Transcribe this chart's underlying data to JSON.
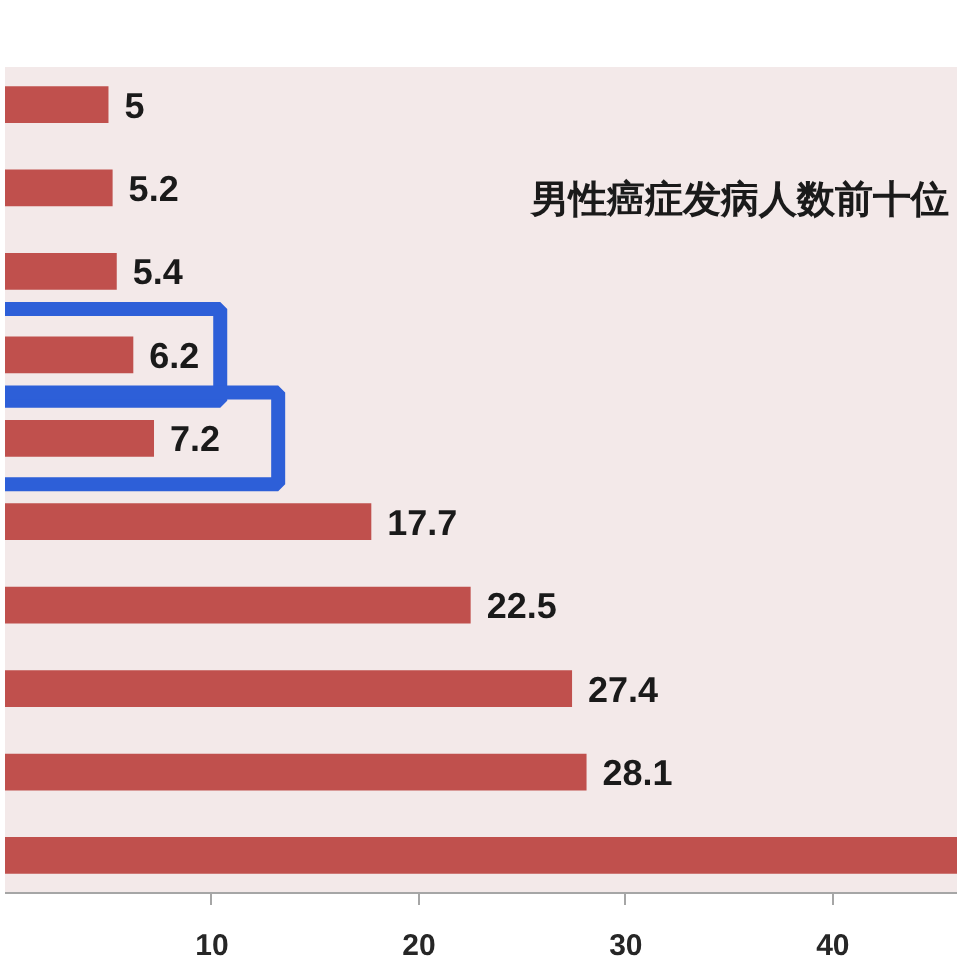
{
  "chart_data": {
    "type": "bar",
    "orientation": "horizontal",
    "title": "男性癌症发病人数前十位",
    "categories": [
      null,
      null,
      null,
      null,
      null,
      null,
      null,
      null,
      null,
      null
    ],
    "values": [
      5,
      5.2,
      5.4,
      6.2,
      7.2,
      17.7,
      22.5,
      27.4,
      28.1,
      46
    ],
    "color": "#c0504d",
    "value_labels": [
      "5",
      "5.2",
      "5.4",
      "6.2",
      "7.2",
      "17.7",
      "22.5",
      "27.4",
      "28.1",
      null
    ],
    "xlim": [
      0,
      46
    ],
    "xticks": [
      10,
      20,
      30,
      40
    ],
    "tick_labels": "x"
  }
}
